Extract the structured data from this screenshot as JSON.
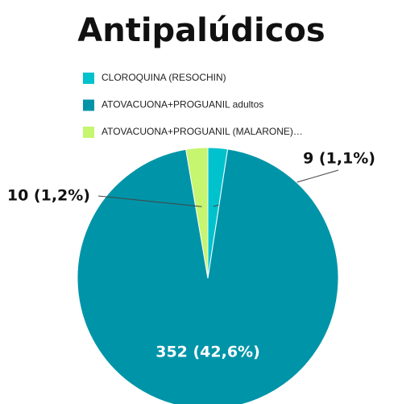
{
  "chart_data": {
    "type": "pie",
    "title": "Antipalúdicos",
    "categories": [
      "CLOROQUINA (RESOCHIN)",
      "ATOVACUONA+PROGUANIL adultos",
      "ATOVACUONA+PROGUANIL (MALARONE)…"
    ],
    "values": [
      9,
      352,
      10
    ],
    "value_labels": [
      "9 (1,1%)",
      "352 (42,6%)",
      "10 (1,2%)"
    ],
    "colors": [
      "#00c2cc",
      "#0094a8",
      "#c6f56f"
    ]
  }
}
